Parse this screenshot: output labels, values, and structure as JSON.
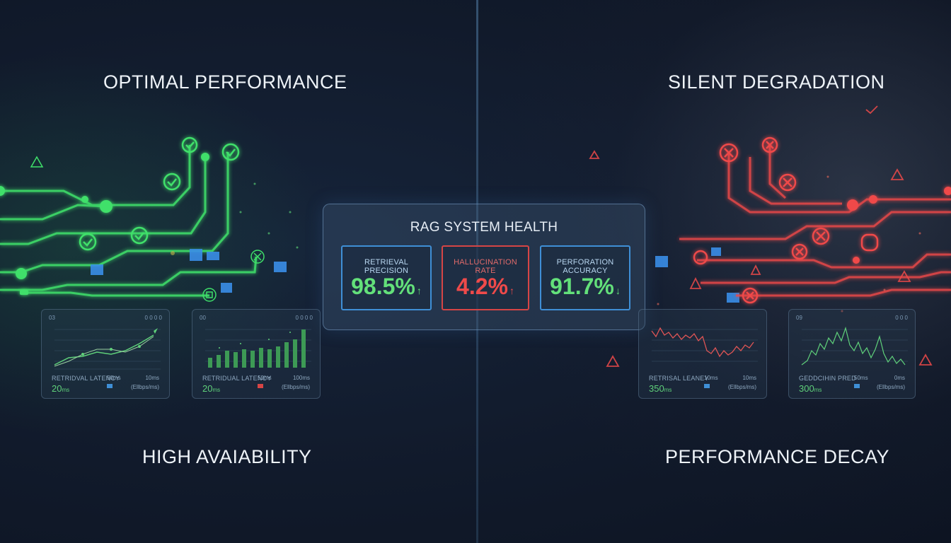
{
  "headings": {
    "top_left": "OPTIMAL PERFORMANCE",
    "top_right": "SILENT DEGRADATION",
    "bottom_left": "HIGH AVAIABILITY",
    "bottom_right": "PERFORMANCE DECAY"
  },
  "health_panel": {
    "title": "RAG SYSTEM HEALTH",
    "metrics": [
      {
        "label": "RETRIEVAL PRECISION",
        "value": "98.5%",
        "trend": "↑",
        "status_color": "#63e07a"
      },
      {
        "label": "HALLUCINATION RATE",
        "value": "4.2%",
        "trend": "↑",
        "status_color": "#ef4a4a"
      },
      {
        "label": "PERFORATION ACCURACY",
        "value": "91.7%",
        "trend": "↓",
        "status_color": "#63e07a"
      }
    ]
  },
  "mini_panels": [
    {
      "corner_left": "03",
      "corner_right": "0 0 0 0",
      "stat_label": "RETRIDVAL LATENCY",
      "stat_value": "20",
      "stat_unit": "ms",
      "mid_label": "50ms",
      "right_1": "10ms",
      "right_2": "(Ellbps/ms)",
      "accent": "#5fd07a"
    },
    {
      "corner_left": "00",
      "corner_right": "0 0 0 0",
      "stat_label": "RETRIDUAL LATENCY",
      "stat_value": "20",
      "stat_unit": "ms",
      "mid_label": "50ms",
      "right_1": "100ms",
      "right_2": "(Ellbps/ms)",
      "accent": "#5fd07a"
    },
    {
      "corner_left": "",
      "corner_right": "",
      "stat_label": "RETRISAL LEANEY",
      "stat_value": "350",
      "stat_unit": "ms",
      "mid_label": "10ms",
      "right_1": "10ms",
      "right_2": "(Ellbps/ms)",
      "accent": "#e05555"
    },
    {
      "corner_left": "09",
      "corner_right": "0 0 0",
      "stat_label": "GEDDCIHIN PRED",
      "stat_value": "300",
      "stat_unit": "ms",
      "mid_label": "50ms",
      "right_1": "0ms",
      "right_2": "(Ellbps/ms)",
      "accent": "#5fd07a"
    }
  ],
  "colors": {
    "healthy": "#3fe06a",
    "degraded": "#f04a4a",
    "info": "#3f8fd6"
  }
}
